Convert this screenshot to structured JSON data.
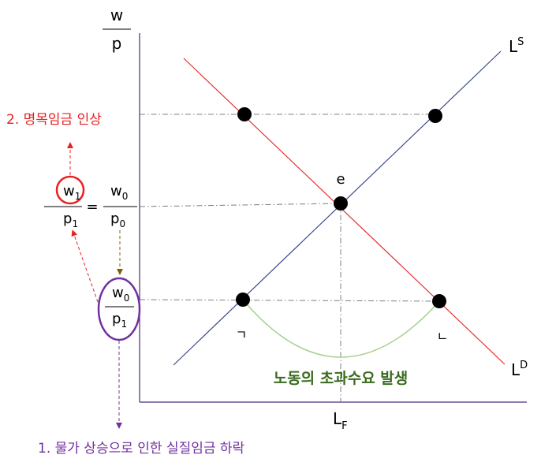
{
  "axes": {
    "y_numerator": "w",
    "y_denominator": "p",
    "x_point_main": "L",
    "x_point_sub": "F"
  },
  "curves": {
    "supply_main": "L",
    "supply_sup": "S",
    "demand_main": "L",
    "demand_sup": "D"
  },
  "points": {
    "equilibrium": "e",
    "left_low": "ㄱ",
    "right_low": "ㄴ"
  },
  "annotations": {
    "nominal_wage_rise": "2. 명목임금 인상",
    "excess_demand": "노동의 초과수요 발생",
    "real_wage_fall": "1. 물가 상승으로 인한 실질임금 하락"
  },
  "fractions": {
    "w1": "w",
    "w1_sub": "1",
    "p1": "p",
    "p1_sub": "1",
    "equals": "=",
    "w0": "w",
    "w0_sub": "0",
    "p0": "p",
    "p0_sub": "0",
    "w0b": "w",
    "w0b_sub": "0",
    "p1b": "p",
    "p1b_sub": "1"
  },
  "colors": {
    "axis": "#4b2a7a",
    "supply": "#3a4a8a",
    "demand": "#e83030",
    "guide": "#7f7f7f",
    "arc": "#a7d08c",
    "red_text": "#e8201f",
    "green_text": "#3b6b1f",
    "purple": "#7030a0",
    "olive": "#7f6000"
  }
}
